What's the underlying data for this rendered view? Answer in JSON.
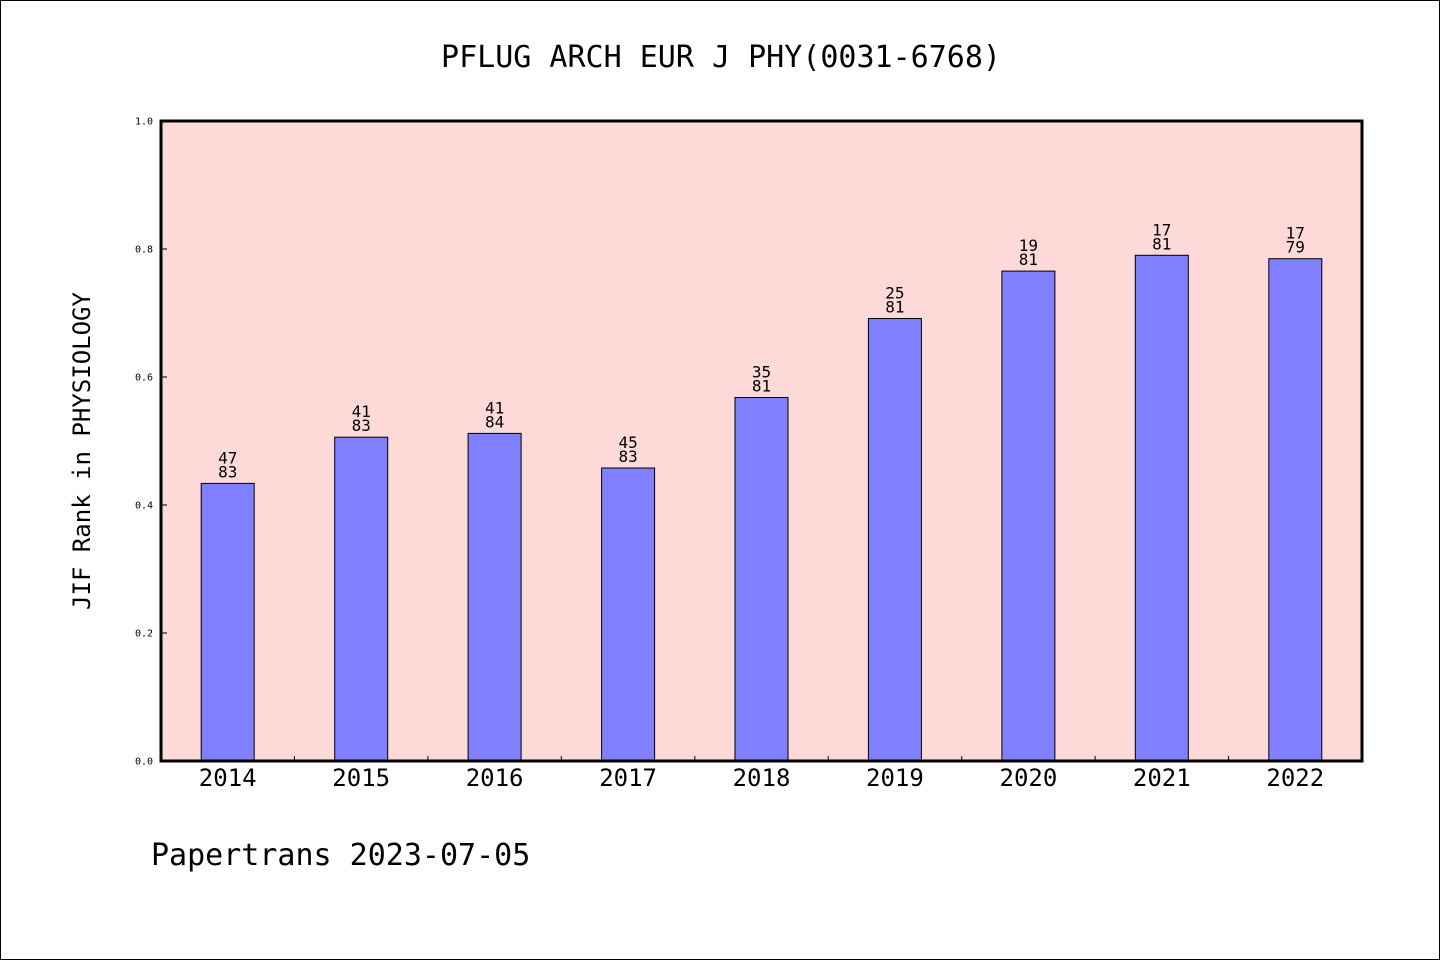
{
  "chart_data": {
    "type": "bar",
    "title": "PFLUG ARCH EUR J PHY(0031-6768)",
    "xlabel": "",
    "ylabel": "JIF Rank in PHYSIOLOGY",
    "ylim": [
      0,
      1.0
    ],
    "yticks": [
      "0.0",
      "0.2",
      "0.4",
      "0.6",
      "0.8",
      "1.0"
    ],
    "categories": [
      "2014",
      "2015",
      "2016",
      "2017",
      "2018",
      "2019",
      "2020",
      "2021",
      "2022"
    ],
    "values": [
      0.4337,
      0.506,
      0.5119,
      0.4578,
      0.5679,
      0.6914,
      0.7654,
      0.7901,
      0.7848
    ],
    "rank": [
      47,
      41,
      41,
      45,
      35,
      25,
      19,
      17,
      17
    ],
    "total": [
      83,
      83,
      84,
      83,
      81,
      81,
      81,
      81,
      79
    ],
    "grid": false,
    "colors": {
      "bar": "#8080ff",
      "plot_bg": "#fdd9d7",
      "frame": "#000000"
    }
  },
  "footer": "Papertrans 2023-07-05"
}
